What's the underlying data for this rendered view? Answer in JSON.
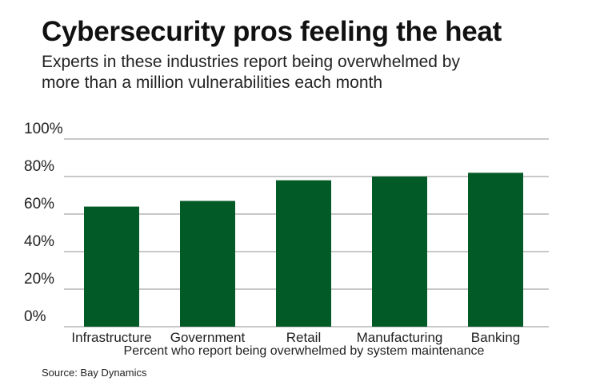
{
  "chart_data": {
    "type": "bar",
    "title": "Cybersecurity pros feeling the heat",
    "subtitle": [
      "Experts in these industries report being overwhelmed by",
      "more than a million vulnerabilities each month"
    ],
    "categories": [
      "Infrastructure",
      "Government",
      "Retail",
      "Manufacturing",
      "Banking"
    ],
    "values": [
      64,
      67,
      78,
      80,
      82
    ],
    "xlabel": "Percent who report being overwhelmed by system maintenance",
    "ylabel": "",
    "ylim": [
      0,
      100
    ],
    "yticks": [
      "0%",
      "20%",
      "40%",
      "60%",
      "80%",
      "100%"
    ],
    "grid": true,
    "bar_color": "#025A27",
    "source": "Source: Bay Dynamics"
  }
}
